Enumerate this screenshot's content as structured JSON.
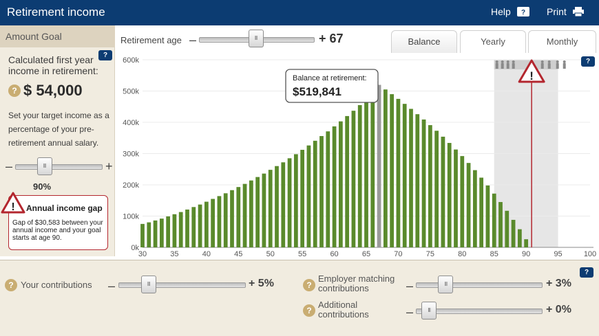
{
  "header": {
    "title": "Retirement income",
    "help_label": "Help",
    "print_label": "Print"
  },
  "left": {
    "tab_label": "Amount Goal",
    "calc_label": "Calculated first year income in retirement:",
    "calc_value": "$ 54,000",
    "target_text": "Set your target income as a percentage of your pre-retirement annual salary.",
    "pct_value": "90%",
    "pct_slider_level": 0.3,
    "gap_title": "Annual income gap",
    "gap_text": "Gap of $30,583 between your annual income and your goal starts at age 90."
  },
  "controls": {
    "ret_age_label": "Retirement age",
    "ret_age_value": "+ 67",
    "ret_slider_level": 0.49,
    "tabs": [
      "Balance",
      "Yearly",
      "Monthly"
    ],
    "active_tab": 0
  },
  "tooltip": {
    "label": "Balance at retirement:",
    "value": "$519,841"
  },
  "bottom": {
    "your_contrib_label": "Your contributions",
    "your_contrib_value": "+ 5%",
    "your_contrib_level": 0.2,
    "employer_label_1": "Employer matching",
    "employer_label_2": "contributions",
    "employer_value": "+ 3%",
    "employer_level": 0.2,
    "additional_label_1": "Additional",
    "additional_label_2": "contributions",
    "additional_value": "+ 0%",
    "additional_level": 0.05
  },
  "colors": {
    "header_bg": "#0c3c72",
    "bar_green": "#5a8a2c",
    "retirement_bar": "#9a9a9a",
    "warning_red": "#b3262e",
    "panel_bg": "#f1ece0"
  },
  "chart_data": {
    "type": "bar",
    "xlabel": "",
    "ylabel": "",
    "xlim": [
      30,
      100
    ],
    "ylim": [
      0,
      600000
    ],
    "x_ticks": [
      "30",
      "35",
      "40",
      "45",
      "50",
      "55",
      "60",
      "65",
      "70",
      "75",
      "80",
      "85",
      "90",
      "95",
      "100"
    ],
    "y_ticks": [
      "0k",
      "100k",
      "200k",
      "300k",
      "400k",
      "500k",
      "600k"
    ],
    "x": [
      30,
      31,
      32,
      33,
      34,
      35,
      36,
      37,
      38,
      39,
      40,
      41,
      42,
      43,
      44,
      45,
      46,
      47,
      48,
      49,
      50,
      51,
      52,
      53,
      54,
      55,
      56,
      57,
      58,
      59,
      60,
      61,
      62,
      63,
      64,
      65,
      66,
      67,
      68,
      69,
      70,
      71,
      72,
      73,
      74,
      75,
      76,
      77,
      78,
      79,
      80,
      81,
      82,
      83,
      84,
      85,
      86,
      87,
      88,
      89,
      90
    ],
    "values": [
      75000,
      80000,
      86000,
      92000,
      99000,
      106000,
      113000,
      121000,
      129000,
      137000,
      146000,
      155000,
      164000,
      173000,
      183000,
      193000,
      203000,
      214000,
      225000,
      236000,
      248000,
      260000,
      272000,
      285000,
      298000,
      312000,
      326000,
      341000,
      356000,
      371000,
      387000,
      403000,
      420000,
      437000,
      455000,
      473000,
      496000,
      519841,
      505000,
      490000,
      475000,
      459000,
      443000,
      426000,
      409000,
      391000,
      373000,
      354000,
      334000,
      313000,
      292000,
      270000,
      247000,
      223000,
      198000,
      172000,
      145000,
      117000,
      88000,
      58000,
      26000
    ],
    "highlight_age": 67,
    "shortfall_age": 90,
    "shortfall_zone": [
      85,
      95
    ]
  }
}
